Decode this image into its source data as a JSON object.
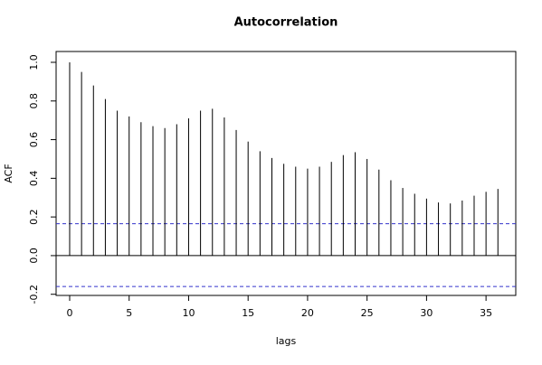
{
  "chart_data": {
    "type": "acf",
    "title": "Autocorrelation",
    "x_label": "lags",
    "y_label": "ACF",
    "x": [
      0,
      1,
      2,
      3,
      4,
      5,
      6,
      7,
      8,
      9,
      10,
      11,
      12,
      13,
      14,
      15,
      16,
      17,
      18,
      19,
      20,
      21,
      22,
      23,
      24,
      25,
      26,
      27,
      28,
      29,
      30,
      31,
      32,
      33,
      34,
      35,
      36
    ],
    "values": [
      1.0,
      0.95,
      0.88,
      0.81,
      0.75,
      0.72,
      0.69,
      0.67,
      0.66,
      0.68,
      0.71,
      0.75,
      0.76,
      0.715,
      0.65,
      0.59,
      0.54,
      0.505,
      0.475,
      0.46,
      0.45,
      0.46,
      0.485,
      0.52,
      0.535,
      0.5,
      0.445,
      0.39,
      0.35,
      0.32,
      0.295,
      0.275,
      0.27,
      0.285,
      0.31,
      0.33,
      0.345
    ],
    "color": "#000000",
    "confidence_bounds": [
      0.165,
      -0.16
    ],
    "confidence_color": "#3333cc",
    "xlim": [
      -1.14,
      37.5
    ],
    "ylim": [
      -0.206,
      1.056
    ],
    "xticks": [
      0,
      5,
      10,
      15,
      20,
      25,
      30,
      35
    ],
    "yticks": [
      -0.2,
      {
        "value": 0,
        "label": "0.0"
      },
      0.2,
      0.4,
      0.6,
      0.8,
      {
        "value": 1,
        "label": "1.0"
      }
    ]
  }
}
